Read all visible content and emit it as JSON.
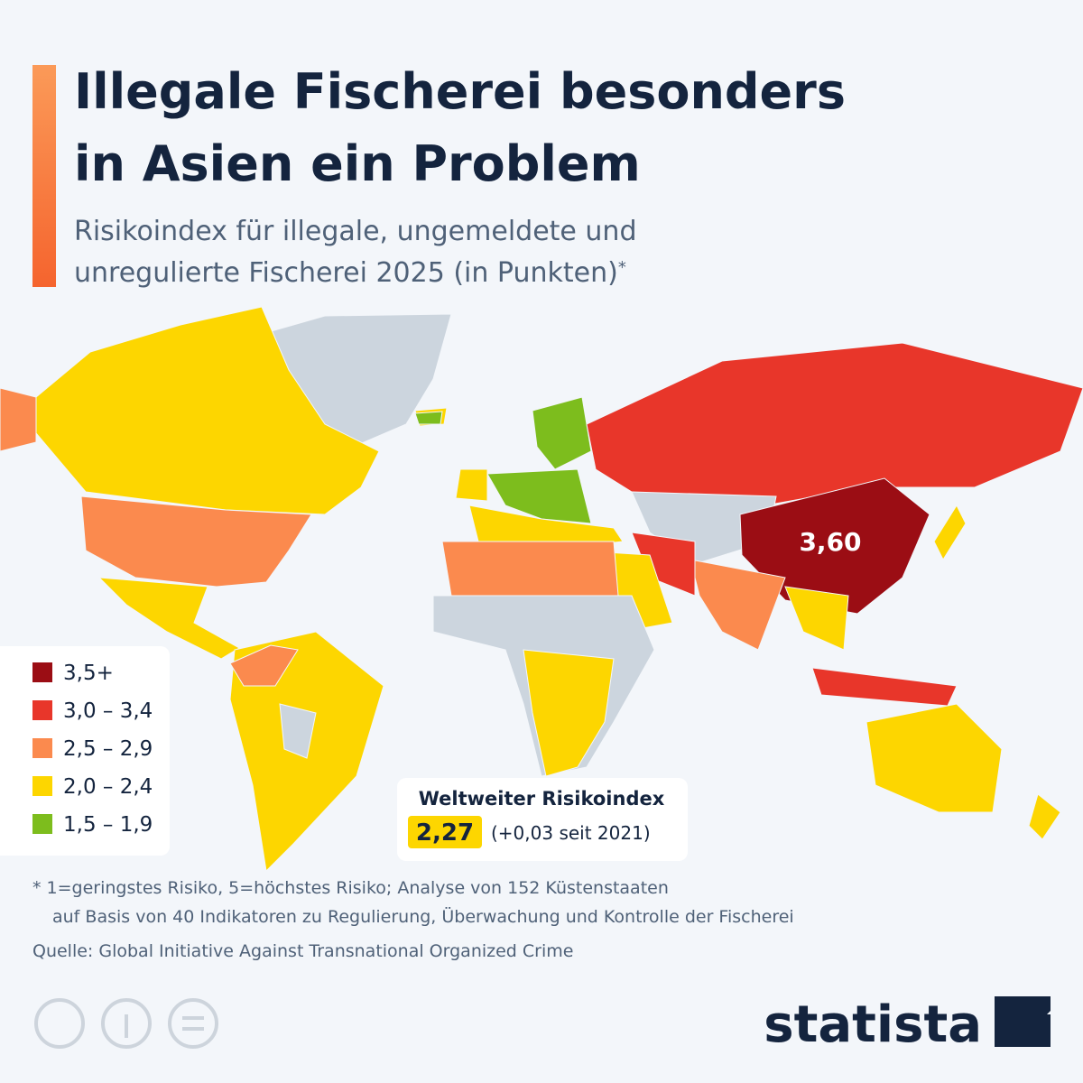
{
  "header": {
    "title_lines": [
      "Illegale Fischerei besonders",
      "in Asien ein Problem"
    ],
    "subtitle_lines": [
      "Risikoindex für illegale, ungemeldete und",
      "unregulierte Fischerei 2025 (in Punkten)"
    ],
    "subtitle_mark": "*"
  },
  "map": {
    "callout": "3,60"
  },
  "legend": {
    "items": [
      {
        "label": "3,5+",
        "color": "#9b0d14"
      },
      {
        "label": "3,0 – 3,4",
        "color": "#e8362a"
      },
      {
        "label": "2,5 – 2,9",
        "color": "#fb8a4e"
      },
      {
        "label": "2,0 – 2,4",
        "color": "#fdd600"
      },
      {
        "label": "1,5 – 1,9",
        "color": "#7dbd1d"
      }
    ]
  },
  "global_index": {
    "title": "Weltweiter Risikoindex",
    "value": "2,27",
    "change": "(+0,03 seit 2021)"
  },
  "footnote": {
    "lines": [
      "* 1=geringstes Risiko, 5=höchstes Risiko; Analyse von 152 Küstenstaaten",
      "auf Basis von 40 Indikatoren zu Regulierung, Überwachung und Kontrolle der Fischerei"
    ]
  },
  "source": "Quelle: Global Initiative Against Transnational Organized Crime",
  "brand": "statista"
}
